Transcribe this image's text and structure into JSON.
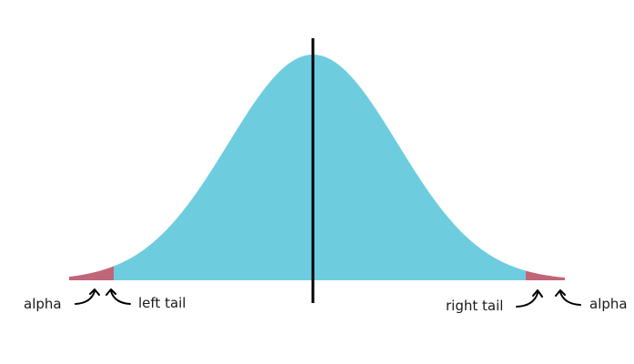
{
  "labels": {
    "alpha_left": "alpha",
    "left_tail": "left tail",
    "right_tail": "right tail",
    "alpha_right": "alpha"
  },
  "colors": {
    "body": "#6DCDDF",
    "tail": "#C06678",
    "center_line": "#000000",
    "text": "#1a1a1a"
  },
  "icons": [
    "curved-arrow-icon"
  ]
}
